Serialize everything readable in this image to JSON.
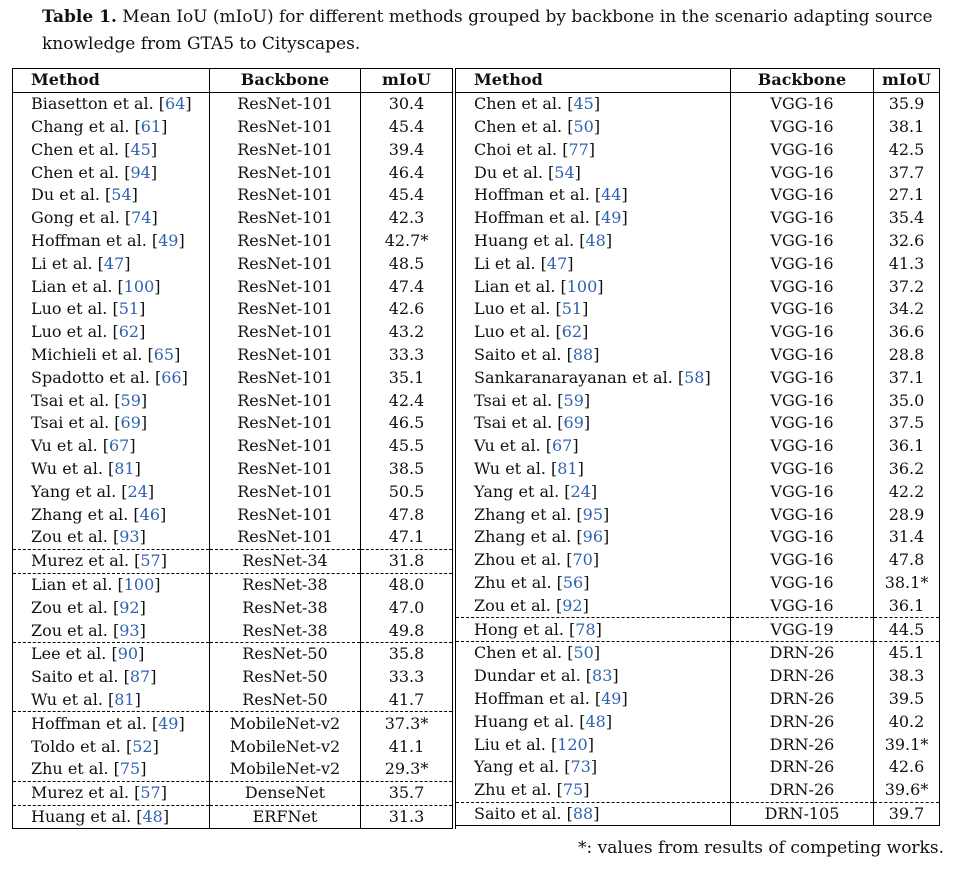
{
  "caption": {
    "label": "Table 1.",
    "text": "Mean IoU (mIoU) for different methods grouped by backbone in the scenario adapting source knowledge from GTA5 to Cityscapes."
  },
  "headers": {
    "method": "Method",
    "backbone": "Backbone",
    "miou": "mIoU"
  },
  "left_rows": [
    {
      "method": "Biasetton et al.",
      "ref": "64",
      "backbone": "ResNet-101",
      "miou": "30.4"
    },
    {
      "method": "Chang et al.",
      "ref": "61",
      "backbone": "ResNet-101",
      "miou": "45.4"
    },
    {
      "method": "Chen et al.",
      "ref": "45",
      "backbone": "ResNet-101",
      "miou": "39.4"
    },
    {
      "method": "Chen et al.",
      "ref": "94",
      "backbone": "ResNet-101",
      "miou": "46.4"
    },
    {
      "method": "Du et al.",
      "ref": "54",
      "backbone": "ResNet-101",
      "miou": "45.4"
    },
    {
      "method": "Gong et al.",
      "ref": "74",
      "backbone": "ResNet-101",
      "miou": "42.3"
    },
    {
      "method": "Hoffman et al.",
      "ref": "49",
      "backbone": "ResNet-101",
      "miou": "42.7*"
    },
    {
      "method": "Li et al.",
      "ref": "47",
      "backbone": "ResNet-101",
      "miou": "48.5"
    },
    {
      "method": "Lian et al.",
      "ref": "100",
      "backbone": "ResNet-101",
      "miou": "47.4"
    },
    {
      "method": "Luo et al.",
      "ref": "51",
      "backbone": "ResNet-101",
      "miou": "42.6"
    },
    {
      "method": "Luo et al.",
      "ref": "62",
      "backbone": "ResNet-101",
      "miou": "43.2"
    },
    {
      "method": "Michieli et al.",
      "ref": "65",
      "backbone": "ResNet-101",
      "miou": "33.3"
    },
    {
      "method": "Spadotto et al.",
      "ref": "66",
      "backbone": "ResNet-101",
      "miou": "35.1"
    },
    {
      "method": "Tsai et al.",
      "ref": "59",
      "backbone": "ResNet-101",
      "miou": "42.4"
    },
    {
      "method": "Tsai et al.",
      "ref": "69",
      "backbone": "ResNet-101",
      "miou": "46.5"
    },
    {
      "method": "Vu et al.",
      "ref": "67",
      "backbone": "ResNet-101",
      "miou": "45.5"
    },
    {
      "method": "Wu et al.",
      "ref": "81",
      "backbone": "ResNet-101",
      "miou": "38.5"
    },
    {
      "method": "Yang et al.",
      "ref": "24",
      "backbone": "ResNet-101",
      "miou": "50.5"
    },
    {
      "method": "Zhang et al.",
      "ref": "46",
      "backbone": "ResNet-101",
      "miou": "47.8"
    },
    {
      "method": "Zou et al.",
      "ref": "93",
      "backbone": "ResNet-101",
      "miou": "47.1"
    },
    {
      "method": "Murez et al.",
      "ref": "57",
      "backbone": "ResNet-34",
      "miou": "31.8",
      "dash": true
    },
    {
      "method": "Lian et al.",
      "ref": "100",
      "backbone": "ResNet-38",
      "miou": "48.0",
      "dash": true
    },
    {
      "method": "Zou et al.",
      "ref": "92",
      "backbone": "ResNet-38",
      "miou": "47.0"
    },
    {
      "method": "Zou et al.",
      "ref": "93",
      "backbone": "ResNet-38",
      "miou": "49.8"
    },
    {
      "method": "Lee et al.",
      "ref": "90",
      "backbone": "ResNet-50",
      "miou": "35.8",
      "dash": true
    },
    {
      "method": "Saito et al.",
      "ref": "87",
      "backbone": "ResNet-50",
      "miou": "33.3"
    },
    {
      "method": "Wu et al.",
      "ref": "81",
      "backbone": "ResNet-50",
      "miou": "41.7"
    },
    {
      "method": "Hoffman et al.",
      "ref": "49",
      "backbone": "MobileNet-v2",
      "miou": "37.3*",
      "dash": true
    },
    {
      "method": "Toldo et al.",
      "ref": "52",
      "backbone": "MobileNet-v2",
      "miou": "41.1"
    },
    {
      "method": "Zhu et al.",
      "ref": "75",
      "backbone": "MobileNet-v2",
      "miou": "29.3*"
    },
    {
      "method": "Murez et al.",
      "ref": "57",
      "backbone": "DenseNet",
      "miou": "35.7",
      "dash": true
    },
    {
      "method": "Huang et al.",
      "ref": "48",
      "backbone": "ERFNet",
      "miou": "31.3",
      "dash": true
    }
  ],
  "right_rows": [
    {
      "method": "Chen et al.",
      "ref": "45",
      "backbone": "VGG-16",
      "miou": "35.9"
    },
    {
      "method": "Chen et al.",
      "ref": "50",
      "backbone": "VGG-16",
      "miou": "38.1"
    },
    {
      "method": "Choi et al.",
      "ref": "77",
      "backbone": "VGG-16",
      "miou": "42.5"
    },
    {
      "method": "Du et al.",
      "ref": "54",
      "backbone": "VGG-16",
      "miou": "37.7"
    },
    {
      "method": "Hoffman et al.",
      "ref": "44",
      "backbone": "VGG-16",
      "miou": "27.1"
    },
    {
      "method": "Hoffman et al.",
      "ref": "49",
      "backbone": "VGG-16",
      "miou": "35.4"
    },
    {
      "method": "Huang et al.",
      "ref": "48",
      "backbone": "VGG-16",
      "miou": "32.6"
    },
    {
      "method": "Li et al.",
      "ref": "47",
      "backbone": "VGG-16",
      "miou": "41.3"
    },
    {
      "method": "Lian et al.",
      "ref": "100",
      "backbone": "VGG-16",
      "miou": "37.2"
    },
    {
      "method": "Luo et al.",
      "ref": "51",
      "backbone": "VGG-16",
      "miou": "34.2"
    },
    {
      "method": "Luo et al.",
      "ref": "62",
      "backbone": "VGG-16",
      "miou": "36.6"
    },
    {
      "method": "Saito et al.",
      "ref": "88",
      "backbone": "VGG-16",
      "miou": "28.8"
    },
    {
      "method": "Sankaranarayanan et al.",
      "ref": "58",
      "backbone": "VGG-16",
      "miou": "37.1"
    },
    {
      "method": "Tsai et al.",
      "ref": "59",
      "backbone": "VGG-16",
      "miou": "35.0"
    },
    {
      "method": "Tsai et al.",
      "ref": "69",
      "backbone": "VGG-16",
      "miou": "37.5"
    },
    {
      "method": "Vu et al.",
      "ref": "67",
      "backbone": "VGG-16",
      "miou": "36.1"
    },
    {
      "method": "Wu et al.",
      "ref": "81",
      "backbone": "VGG-16",
      "miou": "36.2"
    },
    {
      "method": "Yang et al.",
      "ref": "24",
      "backbone": "VGG-16",
      "miou": "42.2"
    },
    {
      "method": "Zhang et al.",
      "ref": "95",
      "backbone": "VGG-16",
      "miou": "28.9"
    },
    {
      "method": "Zhang et al.",
      "ref": "96",
      "backbone": "VGG-16",
      "miou": "31.4"
    },
    {
      "method": "Zhou et al.",
      "ref": "70",
      "backbone": "VGG-16",
      "miou": "47.8"
    },
    {
      "method": "Zhu et al.",
      "ref": "56",
      "backbone": "VGG-16",
      "miou": "38.1*"
    },
    {
      "method": "Zou et al.",
      "ref": "92",
      "backbone": "VGG-16",
      "miou": "36.1"
    },
    {
      "method": "Hong et al.",
      "ref": "78",
      "backbone": "VGG-19",
      "miou": "44.5",
      "dash": true
    },
    {
      "method": "Chen et al.",
      "ref": "50",
      "backbone": "DRN-26",
      "miou": "45.1",
      "dash": true
    },
    {
      "method": "Dundar et al.",
      "ref": "83",
      "backbone": "DRN-26",
      "miou": "38.3"
    },
    {
      "method": "Hoffman et al.",
      "ref": "49",
      "backbone": "DRN-26",
      "miou": "39.5"
    },
    {
      "method": "Huang et al.",
      "ref": "48",
      "backbone": "DRN-26",
      "miou": "40.2"
    },
    {
      "method": "Liu et al.",
      "ref": "120",
      "backbone": "DRN-26",
      "miou": "39.1*"
    },
    {
      "method": "Yang et al.",
      "ref": "73",
      "backbone": "DRN-26",
      "miou": "42.6"
    },
    {
      "method": "Zhu et al.",
      "ref": "75",
      "backbone": "DRN-26",
      "miou": "39.6*"
    },
    {
      "method": "Saito et al.",
      "ref": "88",
      "backbone": "DRN-105",
      "miou": "39.7",
      "dash": true
    }
  ],
  "footnote": "*: values from results of competing works."
}
